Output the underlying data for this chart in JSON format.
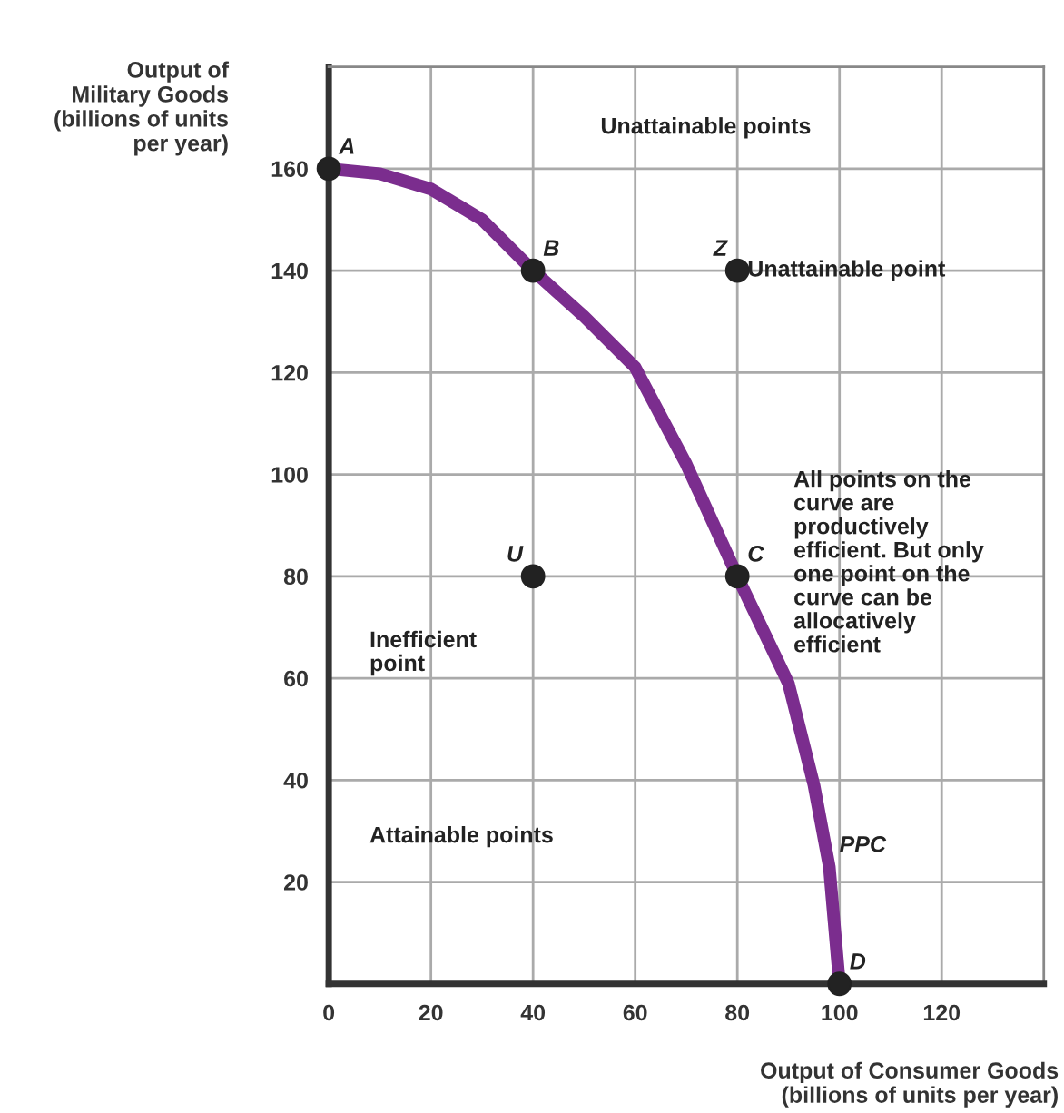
{
  "chart_data": {
    "type": "line",
    "xlabel": "Output of Consumer Goods\n(billions of units per year)",
    "ylabel": "Output of\nMilitary Goods\n(billions of units\nper year)",
    "xlim": [
      0,
      140
    ],
    "ylim": [
      0,
      180
    ],
    "xticks": [
      0,
      20,
      40,
      60,
      80,
      100,
      120
    ],
    "yticks": [
      20,
      40,
      60,
      80,
      100,
      120,
      140,
      160
    ],
    "grid": true,
    "legend": false,
    "line_style": "solid",
    "marker": "none",
    "series": [
      {
        "type": "line",
        "color": "#7b2d8e",
        "x": [
          0,
          10,
          20,
          30,
          40,
          50,
          60,
          70,
          80,
          90,
          95,
          98,
          100
        ],
        "values": [
          160,
          159,
          156,
          150,
          140,
          131,
          121,
          102,
          80,
          59,
          39,
          23,
          0
        ]
      },
      {
        "type": "scatter",
        "color": "#222222",
        "marker": "circle",
        "x": [
          0,
          40,
          80,
          40,
          80,
          100
        ],
        "values": [
          160,
          140,
          140,
          80,
          80,
          0
        ]
      }
    ],
    "annotations": [
      {
        "text": "A",
        "x": 0,
        "y": 160
      },
      {
        "text": "B",
        "x": 40,
        "y": 140
      },
      {
        "text": "Z",
        "x": 80,
        "y": 140
      },
      {
        "text": "U",
        "x": 40,
        "y": 80
      },
      {
        "text": "C",
        "x": 80,
        "y": 80
      },
      {
        "text": "D",
        "x": 100,
        "y": 0
      },
      {
        "text": "PPC",
        "x": 98,
        "y": 23
      },
      {
        "text": "Unattainable point",
        "x": 80,
        "y": 140
      },
      "Unattainable points",
      "All points on the\ncurve are\nproductively\nefficient. But only\none point on the\ncurve can be\nallocatively\nefficient",
      "Inefficient\npoint",
      "Attainable points"
    ]
  }
}
